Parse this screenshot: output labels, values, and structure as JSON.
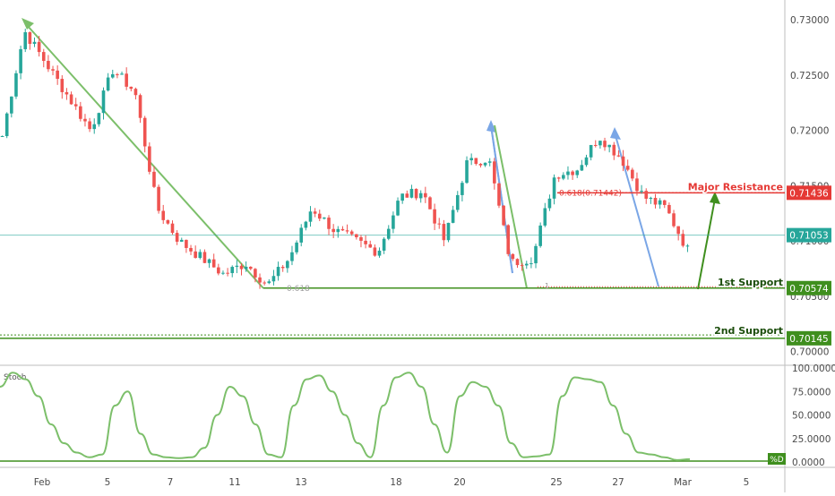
{
  "colors": {
    "up": "#26a69a",
    "down": "#ef5350",
    "trend_green": "#7cbf6a",
    "trend_blue": "#7aa6e6",
    "support_green": "#3f8f1e",
    "resistance_red": "#e53935",
    "stoch_line": "#7cbf6a",
    "current_price": "#26a69a",
    "axis_text": "#4a4a4a",
    "grid": "#e6e6e6"
  },
  "chart_data": [
    {
      "type": "candlestick",
      "title": "",
      "y_axis_ticks": [
        "0.73000",
        "0.72500",
        "0.72000",
        "0.71500",
        "0.71000",
        "0.70500",
        "0.70000"
      ],
      "ylim": [
        0.699,
        0.7318
      ],
      "x_axis_ticks": [
        "Feb",
        "5",
        "7",
        "11",
        "13",
        "18",
        "20",
        "25",
        "27",
        "Mar",
        "5"
      ],
      "series": [
        {
          "name": "",
          "x": [
            "Feb",
            "",
            "",
            "",
            "",
            "5",
            "",
            "",
            "7",
            "",
            "",
            "11",
            "",
            "",
            "13",
            "",
            "",
            "",
            "18",
            "",
            "",
            "20",
            "",
            "",
            "",
            "25",
            "",
            "",
            "27",
            "",
            "",
            "Mar"
          ],
          "y": [
            0.7195,
            0.729,
            0.726,
            0.723,
            0.72,
            0.7255,
            0.7235,
            0.713,
            0.71,
            0.7085,
            0.707,
            0.708,
            0.706,
            0.7085,
            0.713,
            0.711,
            0.71,
            0.709,
            0.714,
            0.7145,
            0.71,
            0.717,
            0.7175,
            0.708,
            0.7085,
            0.716,
            0.7165,
            0.7195,
            0.7175,
            0.714,
            0.713,
            0.7092
          ]
        }
      ],
      "levels": [
        {
          "label": "Major Resistance",
          "price_label": "0.71436",
          "value": 0.71436,
          "color": "#e53935"
        },
        {
          "label": "1st Support",
          "price_label": "0.70574",
          "value": 0.70574,
          "color": "#3f8f1e"
        },
        {
          "label": "2nd Support",
          "price_label": "0.70145",
          "value": 0.70145,
          "color": "#3f8f1e"
        }
      ],
      "current_price": {
        "label": "0.71053",
        "value": 0.71053
      },
      "fib_labels": {
        "resistance": "0.618(0.71442)",
        "support": "0.618",
        "one": "1"
      },
      "grid": false
    },
    {
      "type": "line",
      "title": "Stoch",
      "y_axis_ticks": [
        "100.0000",
        "75.0000",
        "50.0000",
        "25.0000",
        "0.0000"
      ],
      "ylim": [
        0,
        100
      ],
      "series": [
        {
          "name": "%D",
          "values": [
            80,
            95,
            88,
            70,
            40,
            20,
            10,
            5,
            8,
            60,
            75,
            30,
            8,
            5,
            4,
            5,
            15,
            50,
            80,
            70,
            40,
            8,
            5,
            60,
            88,
            92,
            75,
            50,
            20,
            5,
            60,
            90,
            95,
            80,
            40,
            10,
            70,
            85,
            80,
            60,
            20,
            5,
            6,
            8,
            70,
            90,
            88,
            85,
            60,
            30,
            10,
            8,
            5,
            2,
            3
          ]
        }
      ]
    }
  ]
}
